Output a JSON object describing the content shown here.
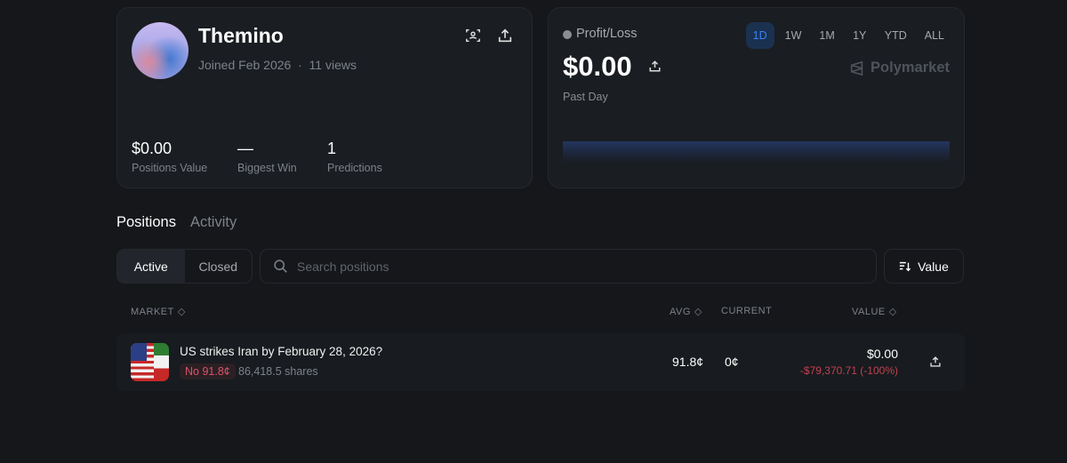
{
  "profile": {
    "name": "Themino",
    "joined": "Joined Feb 2026",
    "views": "11 views",
    "separator": "·",
    "stats": [
      {
        "value": "$0.00",
        "label": "Positions Value"
      },
      {
        "value": "—",
        "label": "Biggest Win"
      },
      {
        "value": "1",
        "label": "Predictions"
      }
    ]
  },
  "pnl": {
    "title": "Profit/Loss",
    "value": "$0.00",
    "period": "Past Day",
    "brand": "Polymarket",
    "ranges": [
      "1D",
      "1W",
      "1M",
      "1Y",
      "YTD",
      "ALL"
    ],
    "active_range": "1D",
    "accent": "#3b82f6"
  },
  "tabs": [
    "Positions",
    "Activity"
  ],
  "filters": {
    "segments": [
      "Active",
      "Closed"
    ],
    "search_placeholder": "Search positions",
    "sort_label": "Value"
  },
  "table": {
    "headers": {
      "market": "MARKET",
      "avg": "AVG",
      "current": "CURRENT",
      "value": "VALUE"
    },
    "rows": [
      {
        "title": "US strikes Iran by February 28, 2026?",
        "outcome": "No 91.8¢",
        "shares": "86,418.5 shares",
        "avg": "91.8¢",
        "current": "0¢",
        "value": "$0.00",
        "pnl": "-$79,370.71 (-100%)"
      }
    ]
  }
}
